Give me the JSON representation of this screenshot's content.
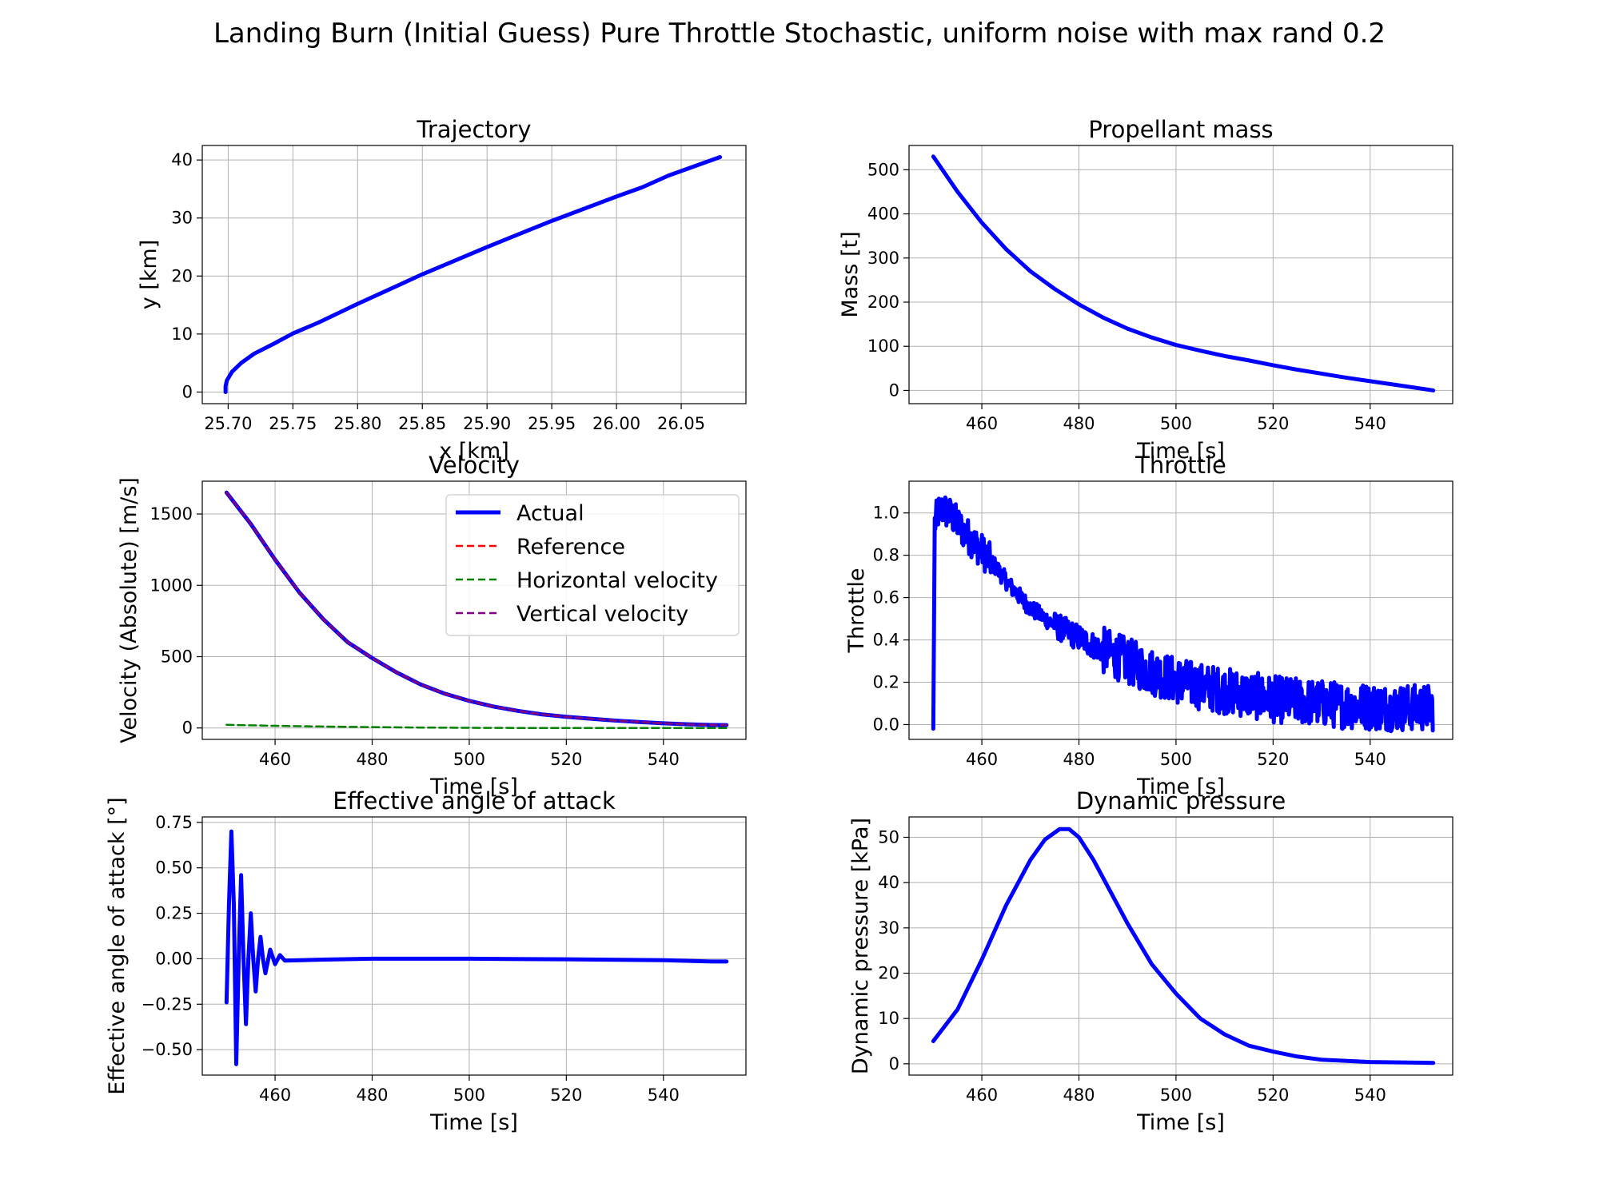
{
  "figure_title": "Landing Burn (Initial Guess) Pure Throttle Stochastic, uniform noise with max rand 0.2",
  "chart_data": [
    {
      "id": "trajectory",
      "type": "line",
      "title": "Trajectory",
      "xlabel": "x [km]",
      "ylabel": "y [km]",
      "xlim": [
        25.68,
        26.1
      ],
      "ylim": [
        -2,
        42.5
      ],
      "xticks": [
        25.7,
        25.75,
        25.8,
        25.85,
        25.9,
        25.95,
        26.0,
        26.05
      ],
      "xtick_labels": [
        "25.70",
        "25.75",
        "25.80",
        "25.85",
        "25.90",
        "25.95",
        "26.00",
        "26.05"
      ],
      "yticks": [
        0,
        10,
        20,
        30,
        40
      ],
      "ytick_labels": [
        "0",
        "10",
        "20",
        "30",
        "40"
      ],
      "grid": true,
      "series": [
        {
          "color": "#0000ff",
          "points": [
            [
              25.698,
              0
            ],
            [
              25.698,
              1
            ],
            [
              25.699,
              2
            ],
            [
              25.703,
              3.5
            ],
            [
              25.71,
              5
            ],
            [
              25.72,
              6.6
            ],
            [
              25.735,
              8.3
            ],
            [
              25.75,
              10.1
            ],
            [
              25.77,
              12
            ],
            [
              25.8,
              15.2
            ],
            [
              25.85,
              20.3
            ],
            [
              25.9,
              25
            ],
            [
              25.95,
              29.5
            ],
            [
              26.0,
              33.7
            ],
            [
              26.02,
              35.3
            ],
            [
              26.04,
              37.3
            ],
            [
              26.06,
              38.9
            ],
            [
              26.08,
              40.5
            ]
          ]
        }
      ]
    },
    {
      "id": "propellant-mass",
      "type": "line",
      "title": "Propellant mass",
      "xlabel": "Time [s]",
      "ylabel": "Mass [t]",
      "xlim": [
        445,
        557
      ],
      "ylim": [
        -30,
        555
      ],
      "xticks": [
        460,
        480,
        500,
        520,
        540
      ],
      "xtick_labels": [
        "460",
        "480",
        "500",
        "520",
        "540"
      ],
      "yticks": [
        0,
        100,
        200,
        300,
        400,
        500
      ],
      "ytick_labels": [
        "0",
        "100",
        "200",
        "300",
        "400",
        "500"
      ],
      "grid": true,
      "series": [
        {
          "color": "#0000ff",
          "points": [
            [
              450,
              530
            ],
            [
              455,
              450
            ],
            [
              460,
              380
            ],
            [
              465,
              320
            ],
            [
              470,
              270
            ],
            [
              475,
              230
            ],
            [
              480,
              195
            ],
            [
              485,
              165
            ],
            [
              490,
              140
            ],
            [
              495,
              120
            ],
            [
              500,
              103
            ],
            [
              505,
              90
            ],
            [
              510,
              78
            ],
            [
              515,
              68
            ],
            [
              520,
              57
            ],
            [
              525,
              47
            ],
            [
              530,
              38
            ],
            [
              535,
              29
            ],
            [
              540,
              21
            ],
            [
              545,
              13
            ],
            [
              550,
              5
            ],
            [
              553,
              0
            ]
          ]
        }
      ]
    },
    {
      "id": "velocity",
      "type": "line",
      "title": "Velocity",
      "xlabel": "Time [s]",
      "ylabel": "Velocity (Absolute) [m/s]",
      "xlim": [
        445,
        557
      ],
      "ylim": [
        -80,
        1730
      ],
      "xticks": [
        460,
        480,
        500,
        520,
        540
      ],
      "xtick_labels": [
        "460",
        "480",
        "500",
        "520",
        "540"
      ],
      "yticks": [
        0,
        500,
        1000,
        1500
      ],
      "ytick_labels": [
        "0",
        "500",
        "1000",
        "1500"
      ],
      "grid": true,
      "legend_position": "top-right",
      "series": [
        {
          "name": "Actual",
          "color": "#0000ff",
          "style": "solid",
          "points": [
            [
              450,
              1650
            ],
            [
              455,
              1430
            ],
            [
              460,
              1180
            ],
            [
              465,
              950
            ],
            [
              470,
              760
            ],
            [
              475,
              600
            ],
            [
              480,
              490
            ],
            [
              485,
              390
            ],
            [
              490,
              305
            ],
            [
              495,
              240
            ],
            [
              500,
              190
            ],
            [
              505,
              150
            ],
            [
              510,
              120
            ],
            [
              515,
              95
            ],
            [
              520,
              78
            ],
            [
              525,
              65
            ],
            [
              530,
              52
            ],
            [
              535,
              42
            ],
            [
              540,
              33
            ],
            [
              545,
              26
            ],
            [
              550,
              21
            ],
            [
              553,
              20
            ]
          ]
        },
        {
          "name": "Reference",
          "color": "#ff0000",
          "style": "dashed",
          "points": [
            [
              450,
              1650
            ],
            [
              455,
              1430
            ],
            [
              460,
              1180
            ],
            [
              465,
              950
            ],
            [
              470,
              760
            ],
            [
              475,
              600
            ],
            [
              480,
              490
            ],
            [
              485,
              390
            ],
            [
              490,
              305
            ],
            [
              495,
              240
            ],
            [
              500,
              190
            ],
            [
              505,
              150
            ],
            [
              510,
              120
            ],
            [
              515,
              95
            ],
            [
              520,
              78
            ],
            [
              525,
              65
            ],
            [
              530,
              52
            ],
            [
              535,
              42
            ],
            [
              540,
              33
            ],
            [
              545,
              26
            ],
            [
              550,
              21
            ],
            [
              553,
              20
            ]
          ]
        },
        {
          "name": "Horizontal velocity",
          "color": "#008000",
          "style": "dashed",
          "points": [
            [
              450,
              22
            ],
            [
              460,
              15
            ],
            [
              470,
              10
            ],
            [
              480,
              6
            ],
            [
              490,
              3
            ],
            [
              500,
              1
            ],
            [
              510,
              0
            ],
            [
              520,
              0
            ],
            [
              530,
              0
            ],
            [
              540,
              0
            ],
            [
              553,
              0
            ]
          ]
        },
        {
          "name": "Vertical velocity",
          "color": "#800080",
          "style": "dashed",
          "points": [
            [
              450,
              1650
            ],
            [
              455,
              1430
            ],
            [
              460,
              1180
            ],
            [
              465,
              950
            ],
            [
              470,
              760
            ],
            [
              475,
              600
            ],
            [
              480,
              490
            ],
            [
              485,
              390
            ],
            [
              490,
              305
            ],
            [
              495,
              240
            ],
            [
              500,
              190
            ],
            [
              505,
              150
            ],
            [
              510,
              120
            ],
            [
              515,
              95
            ],
            [
              520,
              78
            ],
            [
              525,
              65
            ],
            [
              530,
              52
            ],
            [
              535,
              42
            ],
            [
              540,
              33
            ],
            [
              545,
              26
            ],
            [
              550,
              21
            ],
            [
              553,
              20
            ]
          ]
        }
      ]
    },
    {
      "id": "throttle",
      "type": "line",
      "title": "Throttle",
      "xlabel": "Time [s]",
      "ylabel": "Throttle",
      "xlim": [
        445,
        557
      ],
      "ylim": [
        -0.07,
        1.15
      ],
      "xticks": [
        460,
        480,
        500,
        520,
        540
      ],
      "xtick_labels": [
        "460",
        "480",
        "500",
        "520",
        "540"
      ],
      "yticks": [
        0.0,
        0.2,
        0.4,
        0.6,
        0.8,
        1.0
      ],
      "ytick_labels": [
        "0.0",
        "0.2",
        "0.4",
        "0.6",
        "0.8",
        "1.0"
      ],
      "grid": true,
      "noise_max": 0.2,
      "series": [
        {
          "color": "#0000ff",
          "points": [
            [
              450,
              -0.02
            ],
            [
              450.3,
              0.95
            ],
            [
              451,
              1.0
            ],
            [
              452,
              1.02
            ],
            [
              454,
              0.98
            ],
            [
              456,
              0.92
            ],
            [
              458,
              0.87
            ],
            [
              460,
              0.82
            ],
            [
              463,
              0.74
            ],
            [
              466,
              0.65
            ],
            [
              470,
              0.55
            ],
            [
              475,
              0.47
            ],
            [
              480,
              0.41
            ],
            [
              485,
              0.35
            ],
            [
              490,
              0.3
            ],
            [
              495,
              0.25
            ],
            [
              500,
              0.21
            ],
            [
              505,
              0.18
            ],
            [
              510,
              0.16
            ],
            [
              515,
              0.14
            ],
            [
              520,
              0.12
            ],
            [
              525,
              0.11
            ],
            [
              530,
              0.1
            ],
            [
              535,
              0.09
            ],
            [
              540,
              0.085
            ],
            [
              545,
              0.08
            ],
            [
              550,
              0.08
            ],
            [
              553,
              0.08
            ]
          ]
        }
      ]
    },
    {
      "id": "angle-of-attack",
      "type": "line",
      "title": "Effective angle of attack",
      "xlabel": "Time [s]",
      "ylabel": "Effective angle of attack [°]",
      "xlim": [
        445,
        557
      ],
      "ylim": [
        -0.64,
        0.78
      ],
      "xticks": [
        460,
        480,
        500,
        520,
        540
      ],
      "xtick_labels": [
        "460",
        "480",
        "500",
        "520",
        "540"
      ],
      "yticks": [
        -0.5,
        -0.25,
        0.0,
        0.25,
        0.5,
        0.75
      ],
      "ytick_labels": [
        "−0.50",
        "−0.25",
        "0.00",
        "0.25",
        "0.50",
        "0.75"
      ],
      "grid": true,
      "series": [
        {
          "color": "#0000ff",
          "points": [
            [
              450,
              -0.24
            ],
            [
              450.5,
              0.3
            ],
            [
              451,
              0.7
            ],
            [
              451.5,
              0.3
            ],
            [
              452,
              -0.58
            ],
            [
              452.5,
              0.0
            ],
            [
              453,
              0.46
            ],
            [
              453.5,
              0.0
            ],
            [
              454,
              -0.36
            ],
            [
              454.5,
              0.0
            ],
            [
              455,
              0.25
            ],
            [
              455.5,
              0.0
            ],
            [
              456,
              -0.18
            ],
            [
              456.5,
              0.0
            ],
            [
              457,
              0.12
            ],
            [
              457.5,
              0.0
            ],
            [
              458,
              -0.08
            ],
            [
              459,
              0.05
            ],
            [
              460,
              -0.03
            ],
            [
              461,
              0.02
            ],
            [
              462,
              -0.01
            ],
            [
              470,
              -0.005
            ],
            [
              480,
              0.0
            ],
            [
              500,
              0.0
            ],
            [
              520,
              -0.003
            ],
            [
              540,
              -0.008
            ],
            [
              550,
              -0.015
            ],
            [
              553,
              -0.015
            ]
          ]
        }
      ]
    },
    {
      "id": "dynamic-pressure",
      "type": "line",
      "title": "Dynamic pressure",
      "xlabel": "Time [s]",
      "ylabel": "Dynamic pressure [kPa]",
      "xlim": [
        445,
        557
      ],
      "ylim": [
        -2.5,
        54.5
      ],
      "xticks": [
        460,
        480,
        500,
        520,
        540
      ],
      "xtick_labels": [
        "460",
        "480",
        "500",
        "520",
        "540"
      ],
      "yticks": [
        0,
        10,
        20,
        30,
        40,
        50
      ],
      "ytick_labels": [
        "0",
        "10",
        "20",
        "30",
        "40",
        "50"
      ],
      "grid": true,
      "series": [
        {
          "color": "#0000ff",
          "points": [
            [
              450,
              5
            ],
            [
              455,
              12
            ],
            [
              460,
              23
            ],
            [
              465,
              35
            ],
            [
              470,
              45
            ],
            [
              473,
              49.5
            ],
            [
              476,
              51.8
            ],
            [
              478,
              51.8
            ],
            [
              480,
              50
            ],
            [
              483,
              45
            ],
            [
              487,
              37
            ],
            [
              490,
              31
            ],
            [
              495,
              22
            ],
            [
              500,
              15.5
            ],
            [
              505,
              10
            ],
            [
              510,
              6.5
            ],
            [
              515,
              4
            ],
            [
              520,
              2.7
            ],
            [
              525,
              1.6
            ],
            [
              530,
              0.9
            ],
            [
              540,
              0.4
            ],
            [
              553,
              0.2
            ]
          ]
        }
      ]
    }
  ]
}
